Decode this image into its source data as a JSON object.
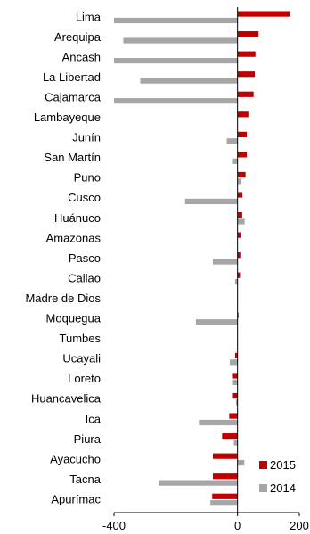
{
  "chart_data": {
    "type": "bar",
    "orientation": "horizontal",
    "categories": [
      "Lima",
      "Arequipa",
      "Ancash",
      "La Libertad",
      "Cajamarca",
      "Lambayeque",
      "Junín",
      "San Martín",
      "Puno",
      "Cusco",
      "Huánuco",
      "Amazonas",
      "Pasco",
      "Callao",
      "Madre de Dios",
      "Moquegua",
      "Tumbes",
      "Ucayali",
      "Loreto",
      "Huancavelica",
      "Ica",
      "Piura",
      "Ayacucho",
      "Tacna",
      "Apurímac"
    ],
    "series": [
      {
        "name": "2015",
        "color": "#c00000",
        "values": [
          170,
          68,
          58,
          56,
          52,
          35,
          30,
          30,
          26,
          16,
          15,
          10,
          9,
          8,
          0,
          3,
          0,
          -8,
          -15,
          -15,
          -27,
          -50,
          -80,
          -80,
          -82
        ]
      },
      {
        "name": "2014",
        "color": "#a6a6a6",
        "values": [
          -400,
          -370,
          -400,
          -315,
          -400,
          0,
          -35,
          -15,
          12,
          -170,
          23,
          0,
          -80,
          -8,
          0,
          -135,
          0,
          -25,
          -15,
          -5,
          -125,
          -12,
          22,
          -255,
          -88
        ]
      }
    ],
    "xlim": [
      -400,
      200
    ],
    "ticks": [
      "-400",
      "0",
      "200"
    ],
    "legend_position": "bottom-right"
  }
}
